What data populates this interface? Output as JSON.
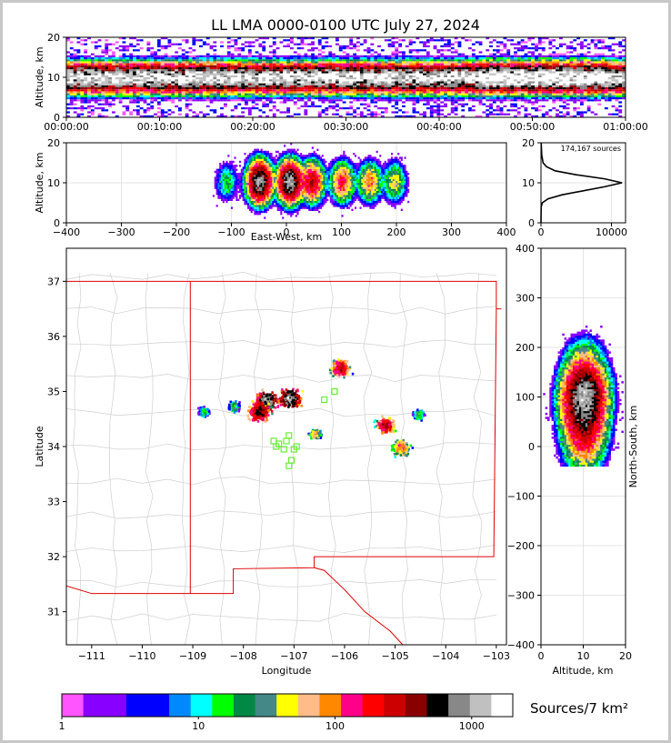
{
  "chart_data": {
    "title": "LL LMA 0000-0100 UTC July 27, 2024",
    "panels": [
      {
        "id": "time-altitude",
        "type": "heatmap",
        "ylabel": "Altitude, km",
        "ylim": [
          0,
          20
        ],
        "yticks": [
          "0",
          "10",
          "20"
        ],
        "xlim_minutes": [
          0,
          60
        ],
        "xticks": [
          "00:00:00",
          "00:10:00",
          "00:20:00",
          "00:30:00",
          "00:40:00",
          "00:50:00",
          "01:00:00"
        ],
        "core_altitude_km": [
          7,
          12
        ]
      },
      {
        "id": "eastwest-altitude",
        "type": "heatmap",
        "ylabel": "Altitude, km",
        "xlabel": "East-West, km",
        "xlim": [
          -400,
          400
        ],
        "ylim": [
          0,
          20
        ],
        "xticks": [
          "−400",
          "−300",
          "−200",
          "−100",
          "0",
          "100",
          "200",
          "300",
          "400"
        ],
        "yticks": [
          "0",
          "10",
          "20"
        ],
        "cells": [
          {
            "x": -50,
            "z": 10,
            "level": 1000
          },
          {
            "x": 5,
            "z": 10,
            "level": 1000
          },
          {
            "x": 45,
            "z": 10,
            "level": 300
          },
          {
            "x": 100,
            "z": 10,
            "level": 150
          },
          {
            "x": 150,
            "z": 10,
            "level": 100
          },
          {
            "x": 195,
            "z": 10,
            "level": 50
          },
          {
            "x": -110,
            "z": 10,
            "level": 20
          }
        ]
      },
      {
        "id": "altitude-histogram",
        "type": "line",
        "annotation": "174,167 sources",
        "xlim": [
          0,
          12000
        ],
        "ylim": [
          0,
          20
        ],
        "xticks": [
          "0",
          "10000"
        ],
        "yticks": [
          "0",
          "10",
          "20"
        ],
        "curve": [
          [
            0,
            0
          ],
          [
            20,
            4
          ],
          [
            200,
            5
          ],
          [
            1000,
            6
          ],
          [
            3000,
            7
          ],
          [
            6000,
            8
          ],
          [
            9000,
            9
          ],
          [
            11500,
            10
          ],
          [
            9000,
            11
          ],
          [
            5000,
            12
          ],
          [
            2000,
            13
          ],
          [
            800,
            14
          ],
          [
            300,
            15
          ],
          [
            100,
            17
          ],
          [
            30,
            20
          ]
        ]
      },
      {
        "id": "plan-view",
        "type": "heatmap",
        "xlabel": "Longitude",
        "ylabel": "Latitude",
        "xlim": [
          -111.5,
          -102.8
        ],
        "ylim": [
          30.4,
          37.6
        ],
        "xticks": [
          "−111",
          "−110",
          "−109",
          "−108",
          "−107",
          "−106",
          "−105",
          "−104",
          "−103"
        ],
        "yticks": [
          "31",
          "32",
          "33",
          "34",
          "35",
          "36",
          "37"
        ],
        "cells": [
          {
            "lon": -107.55,
            "lat": 34.8,
            "level": 1000
          },
          {
            "lon": -107.1,
            "lat": 34.85,
            "level": 1000
          },
          {
            "lon": -107.7,
            "lat": 34.6,
            "level": 500
          },
          {
            "lon": -106.1,
            "lat": 35.4,
            "level": 300
          },
          {
            "lon": -105.2,
            "lat": 34.35,
            "level": 300
          },
          {
            "lon": -104.9,
            "lat": 33.95,
            "level": 100
          },
          {
            "lon": -106.6,
            "lat": 34.2,
            "level": 80
          },
          {
            "lon": -108.2,
            "lat": 34.7,
            "level": 30
          },
          {
            "lon": -108.8,
            "lat": 34.6,
            "level": 20
          },
          {
            "lon": -104.55,
            "lat": 34.55,
            "level": 30
          }
        ],
        "stations": [
          [
            -107.15,
            34.1
          ],
          [
            -107.35,
            34.0
          ],
          [
            -107.1,
            34.2
          ],
          [
            -106.95,
            34.0
          ],
          [
            -107.3,
            34.05
          ],
          [
            -107.05,
            33.75
          ],
          [
            -107.1,
            33.65
          ],
          [
            -107.2,
            33.95
          ],
          [
            -106.2,
            35.0
          ],
          [
            -106.4,
            34.85
          ],
          [
            -107.0,
            33.95
          ],
          [
            -107.4,
            34.1
          ]
        ]
      },
      {
        "id": "altitude-northsouth",
        "type": "heatmap",
        "xlabel": "Altitude, km",
        "ylabel": "North-South, km",
        "xlim": [
          0,
          20
        ],
        "ylim": [
          -400,
          400
        ],
        "xticks": [
          "0",
          "10",
          "20"
        ],
        "yticks": [
          "−400",
          "−300",
          "−200",
          "−100",
          "0",
          "100",
          "200",
          "300",
          "400"
        ],
        "cells": [
          {
            "z": 10,
            "y": 100,
            "level": 1000
          },
          {
            "z": 10,
            "y": 60,
            "level": 300
          },
          {
            "z": 10,
            "y": 30,
            "level": 150
          },
          {
            "z": 10,
            "y": 150,
            "level": 100
          },
          {
            "z": 10,
            "y": 0,
            "level": 60
          }
        ]
      }
    ],
    "colorbar": {
      "label": "Sources/7 km²",
      "scale": "log",
      "range": [
        1,
        2000
      ],
      "ticks": [
        "1",
        "10",
        "100",
        "1000"
      ],
      "colors": [
        "#ff55ff",
        "#8800ff",
        "#8800ff",
        "#0000ff",
        "#0000ff",
        "#0088ff",
        "#00ffff",
        "#00ff00",
        "#008844",
        "#448888",
        "#ffff00",
        "#ffbb88",
        "#ff8800",
        "#ff0088",
        "#ff0000",
        "#cc0000",
        "#880000",
        "#000000",
        "#888888",
        "#c0c0c0",
        "#ffffff"
      ]
    }
  }
}
